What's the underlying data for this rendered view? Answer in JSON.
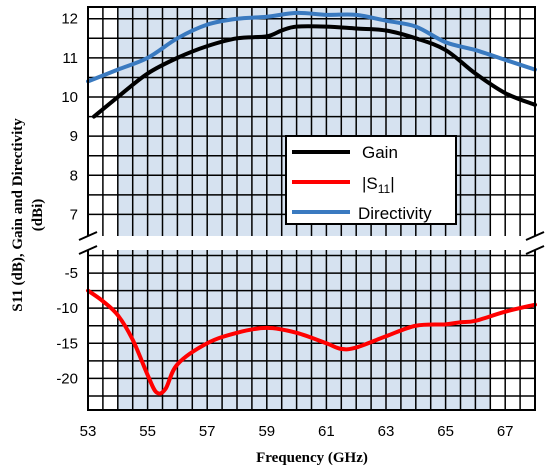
{
  "chart_data": {
    "type": "line",
    "xlabel": "Frequency (GHz)",
    "ylabel_line1": "S11 (dB), Gain and Directivity",
    "ylabel_line2": "(dBi)",
    "xlim": [
      53,
      68
    ],
    "x_ticks": [
      "53",
      "55",
      "57",
      "59",
      "61",
      "63",
      "65",
      "67"
    ],
    "upper_panel": {
      "ylim": [
        6.5,
        12.3
      ],
      "y_ticks": [
        "7",
        "8",
        "9",
        "10",
        "11",
        "12"
      ]
    },
    "lower_panel": {
      "ylim": [
        -24.5,
        -2
      ],
      "y_ticks": [
        "-5",
        "-10",
        "-15",
        "-20"
      ]
    },
    "shaded_band_ghz": [
      54,
      66.5
    ],
    "grid": true,
    "axis_break": true,
    "legend_position": "center-right",
    "series": [
      {
        "name": "Gain",
        "panel": "upper",
        "color": "#000000",
        "x": [
          53.2,
          54,
          55,
          56,
          57,
          58,
          59,
          59.5,
          60,
          61,
          62,
          63,
          64,
          65,
          66,
          67,
          68
        ],
        "values": [
          9.5,
          10.0,
          10.6,
          11.0,
          11.3,
          11.5,
          11.55,
          11.7,
          11.8,
          11.8,
          11.75,
          11.7,
          11.5,
          11.2,
          10.6,
          10.1,
          9.8
        ]
      },
      {
        "name": "|S11|",
        "panel": "lower",
        "color": "#ff0000",
        "x": [
          53,
          53.5,
          54,
          54.5,
          55,
          55.3,
          55.6,
          56,
          57,
          58,
          59,
          60,
          61,
          61.5,
          62,
          63,
          64,
          65,
          65.5,
          66,
          67,
          68
        ],
        "values": [
          -7.5,
          -9,
          -11,
          -14.5,
          -19.5,
          -22,
          -21.5,
          -18,
          -15,
          -13.5,
          -12.8,
          -13.5,
          -15,
          -15.8,
          -15.6,
          -14,
          -12.5,
          -12.3,
          -12,
          -11.8,
          -10.5,
          -9.5
        ]
      },
      {
        "name": "Directivity",
        "panel": "upper",
        "color": "#3a7ac0",
        "x": [
          53,
          54,
          55,
          56,
          57,
          58,
          59,
          60,
          61,
          62,
          63,
          64,
          65,
          66,
          67,
          68
        ],
        "values": [
          10.4,
          10.7,
          11.0,
          11.5,
          11.85,
          12.0,
          12.05,
          12.15,
          12.1,
          12.1,
          11.95,
          11.8,
          11.4,
          11.2,
          10.95,
          10.7
        ]
      }
    ]
  },
  "legend": {
    "gain": "Gain",
    "s11_prefix": "|S",
    "s11_sub": "11",
    "s11_suffix": "|",
    "directivity": "Directivity"
  }
}
